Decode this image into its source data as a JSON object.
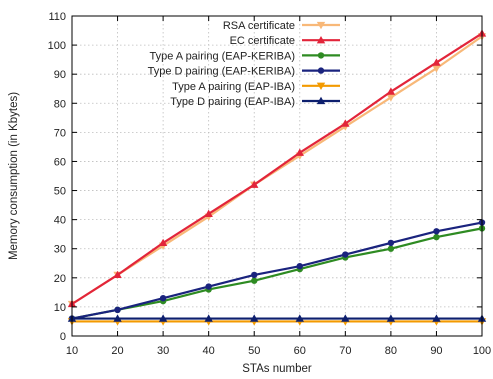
{
  "chart_data": {
    "type": "line",
    "title": "",
    "xlabel": "STAs number",
    "ylabel": "Memory consumption (in Kbytes)",
    "xlim": [
      10,
      100
    ],
    "ylim": [
      0,
      110
    ],
    "grid": true,
    "legend_position": "top-right",
    "x": [
      10,
      20,
      30,
      40,
      50,
      60,
      70,
      80,
      90,
      100
    ],
    "x_ticks": [
      "10",
      "20",
      "30",
      "40",
      "50",
      "60",
      "70",
      "80",
      "90",
      "100"
    ],
    "y_ticks": [
      "0",
      "10",
      "20",
      "30",
      "40",
      "50",
      "60",
      "70",
      "80",
      "90",
      "100",
      "110"
    ],
    "series": [
      {
        "name": "RSA certificate",
        "color": "#f8b878",
        "marker": "triangle-down",
        "values": [
          11,
          21,
          31,
          41,
          52,
          62,
          72,
          82,
          92,
          103
        ]
      },
      {
        "name": "EC certificate",
        "color": "#e2253a",
        "marker": "triangle-up",
        "values": [
          11,
          21,
          32,
          42,
          52,
          63,
          73,
          84,
          94,
          104
        ]
      },
      {
        "name": "Type A pairing (EAP-KERIBA)",
        "color": "#2e8b22",
        "marker": "circle",
        "values": [
          6,
          9,
          12,
          16,
          19,
          23,
          27,
          30,
          34,
          37
        ]
      },
      {
        "name": "Type D pairing (EAP-KERIBA)",
        "color": "#1a237e",
        "marker": "circle",
        "values": [
          6,
          9,
          13,
          17,
          21,
          24,
          28,
          32,
          36,
          39
        ]
      },
      {
        "name": "Type A pairing (EAP-IBA)",
        "color": "#f39a00",
        "marker": "triangle-down",
        "values": [
          5,
          5,
          5,
          5,
          5,
          5,
          5,
          5,
          5,
          5
        ]
      },
      {
        "name": "Type D pairing (EAP-IBA)",
        "color": "#0d1f6e",
        "marker": "triangle-up",
        "values": [
          6,
          6,
          6,
          6,
          6,
          6,
          6,
          6,
          6,
          6
        ]
      }
    ]
  }
}
